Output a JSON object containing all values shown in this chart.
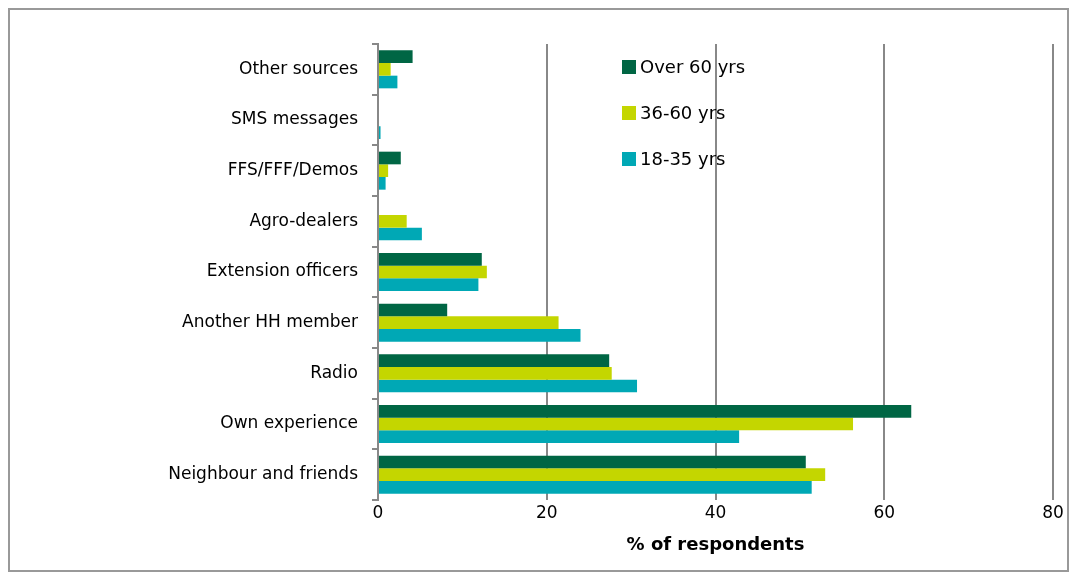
{
  "chart_data": {
    "type": "bar",
    "orientation": "horizontal",
    "xlabel": "% of respondents",
    "categories": [
      "Other sources",
      "SMS messages",
      "FFS/FFF/Demos",
      "Agro-dealers",
      "Extension officers",
      "Another HH member",
      "Radio",
      "Own experience",
      "Neighbour and friends"
    ],
    "series": [
      {
        "name": "Over 60 yrs",
        "color": "#006644",
        "values": [
          4.1,
          0,
          2.7,
          0,
          12.3,
          8.2,
          27.4,
          63.2,
          50.7
        ]
      },
      {
        "name": "36-60 yrs",
        "color": "#c4d600",
        "values": [
          1.5,
          0,
          1.2,
          3.4,
          12.9,
          21.4,
          27.7,
          56.3,
          53.0
        ]
      },
      {
        "name": "18-35 yrs",
        "color": "#00a8b5",
        "values": [
          2.3,
          0.3,
          0.9,
          5.2,
          11.9,
          24.0,
          30.7,
          42.8,
          51.4
        ]
      }
    ],
    "xlim": [
      0,
      80
    ],
    "xticks": [
      0,
      20,
      40,
      60,
      80
    ],
    "grid": "x",
    "legend": "top"
  }
}
